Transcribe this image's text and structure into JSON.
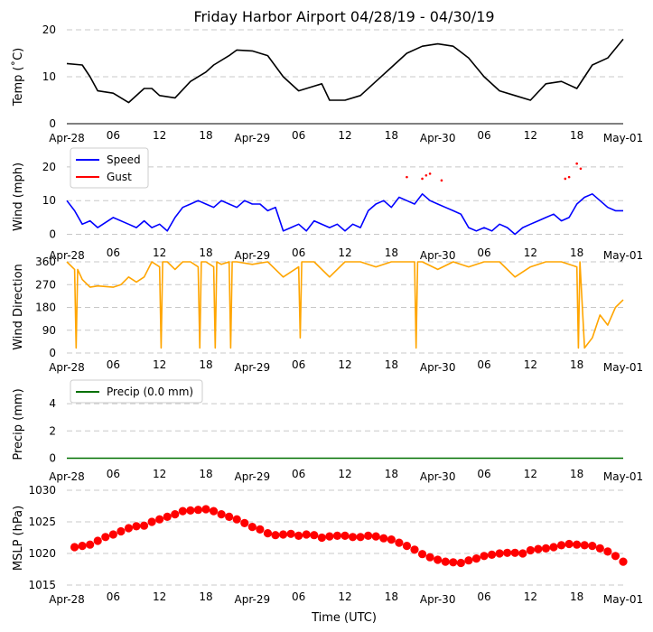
{
  "title": "Friday Harbor Airport 04/28/19 - 04/30/19",
  "xlabel": "Time (UTC)",
  "x_ticks": [
    "Apr-28",
    "06",
    "12",
    "18",
    "Apr-29",
    "06",
    "12",
    "18",
    "Apr-30",
    "06",
    "12",
    "18",
    "May-01"
  ],
  "colors": {
    "temp": "#000000",
    "speed": "#0000ff",
    "gust": "#ff0000",
    "dir": "#ffa500",
    "precip": "#007000",
    "mslp": "#ff0000",
    "grid": "#c8c8c8"
  },
  "chart_data": [
    {
      "type": "line",
      "name": "temperature",
      "ylabel": "Temp ($^\\circ$C)",
      "ylabel_display": "Temp (˚C)",
      "ylim": [
        0,
        20
      ],
      "yticks": [
        "0",
        "10",
        "20"
      ],
      "x_hours": [
        0,
        2,
        3,
        4,
        6,
        8,
        10,
        11,
        12,
        14,
        16,
        18,
        19,
        21,
        22,
        24,
        26,
        28,
        30,
        32,
        33,
        34,
        36,
        38,
        40,
        42,
        44,
        46,
        48,
        50,
        52,
        54,
        56,
        58,
        60,
        62,
        64,
        66,
        68,
        70,
        72
      ],
      "series": [
        {
          "name": "Temp",
          "values": [
            12.8,
            12.5,
            10,
            7,
            6.5,
            4.5,
            7.5,
            7.5,
            6,
            5.5,
            9,
            11,
            12.5,
            14.5,
            15.7,
            15.5,
            14.5,
            10,
            7,
            8,
            8.5,
            5,
            5,
            6,
            9,
            12,
            15,
            16.5,
            17,
            16.5,
            14,
            10,
            7,
            6,
            5,
            8.5,
            9,
            7.5,
            12.5,
            14,
            18
          ]
        }
      ]
    },
    {
      "type": "line",
      "name": "wind",
      "ylabel": "Wind (mph)",
      "ylim": [
        -2,
        24
      ],
      "yticks": [
        "0",
        "10",
        "20"
      ],
      "x_hours": [
        0,
        1,
        2,
        3,
        4,
        6,
        8,
        9,
        10,
        11,
        12,
        13,
        14,
        15,
        16,
        17,
        18,
        19,
        20,
        21,
        22,
        23,
        24,
        25,
        26,
        27,
        28,
        29,
        30,
        31,
        32,
        34,
        35,
        36,
        37,
        38,
        39,
        40,
        41,
        42,
        43,
        44,
        45,
        46,
        47,
        48,
        49,
        50,
        51,
        52,
        53,
        54,
        55,
        56,
        57,
        58,
        59,
        60,
        61,
        62,
        63,
        64,
        65,
        66,
        67,
        68,
        69,
        70,
        71,
        72
      ],
      "series": [
        {
          "name": "Speed",
          "values": [
            10,
            7,
            3,
            4,
            2,
            5,
            3,
            2,
            4,
            2,
            3,
            1,
            5,
            8,
            9,
            10,
            9,
            8,
            10,
            9,
            8,
            10,
            9,
            9,
            7,
            8,
            1,
            2,
            3,
            1,
            4,
            2,
            3,
            1,
            3,
            2,
            7,
            9,
            10,
            8,
            11,
            10,
            9,
            12,
            10,
            9,
            8,
            7,
            6,
            2,
            1,
            2,
            1,
            3,
            2,
            0,
            2,
            3,
            4,
            5,
            6,
            4,
            5,
            9,
            11,
            12,
            10,
            8,
            7,
            7
          ]
        },
        {
          "name": "Gust",
          "x_hours": [
            44,
            46,
            46.5,
            47,
            48.5,
            64.5,
            65,
            66,
            66.5
          ],
          "values": [
            17,
            16.5,
            17.5,
            18,
            16,
            16.5,
            17,
            21,
            19.5
          ]
        }
      ],
      "legend": [
        "Speed",
        "Gust"
      ]
    },
    {
      "type": "line",
      "name": "wind_direction",
      "ylabel": "Wind Direction",
      "ylim": [
        0,
        360
      ],
      "yticks": [
        "0",
        "90",
        "180",
        "270",
        "360"
      ],
      "x_hours": [
        0,
        1,
        1.2,
        1.4,
        2,
        3,
        4,
        6,
        7,
        8,
        9,
        10,
        11,
        12,
        12.2,
        12.4,
        13,
        14,
        15,
        16,
        17,
        17.2,
        17.4,
        18,
        19,
        19.2,
        19.4,
        20,
        21,
        21.2,
        21.4,
        22,
        24,
        26,
        28,
        30,
        30.2,
        30.4,
        32,
        34,
        36,
        38,
        40,
        42,
        44,
        45,
        45.2,
        45.4,
        46,
        48,
        50,
        52,
        54,
        56,
        58,
        60,
        62,
        64,
        66,
        66.2,
        66.4,
        67,
        68,
        69,
        70,
        71,
        72
      ],
      "series": [
        {
          "name": "Direction",
          "values": [
            360,
            330,
            20,
            330,
            290,
            260,
            265,
            260,
            270,
            300,
            280,
            300,
            360,
            340,
            20,
            360,
            360,
            330,
            360,
            360,
            340,
            20,
            360,
            360,
            340,
            20,
            360,
            350,
            360,
            20,
            360,
            360,
            350,
            360,
            300,
            340,
            60,
            360,
            360,
            300,
            360,
            360,
            340,
            360,
            360,
            360,
            20,
            360,
            360,
            330,
            360,
            340,
            360,
            360,
            300,
            340,
            360,
            360,
            340,
            20,
            360,
            20,
            60,
            150,
            110,
            180,
            210
          ]
        }
      ]
    },
    {
      "type": "line",
      "name": "precipitation",
      "ylabel": "Precip (mm)",
      "ylim": [
        -0.3,
        5
      ],
      "yticks": [
        "0",
        "2",
        "4"
      ],
      "x_hours": [
        0,
        72
      ],
      "series": [
        {
          "name": "Precip (0.0 mm)",
          "values": [
            0,
            0
          ]
        }
      ],
      "legend": [
        "Precip (0.0 mm)"
      ]
    },
    {
      "type": "scatter",
      "name": "mslp",
      "ylabel": "MSLP (hPa)",
      "ylim": [
        1015,
        1030
      ],
      "yticks": [
        "1015",
        "1020",
        "1025",
        "1030"
      ],
      "x_hours": [
        1,
        2,
        3,
        4,
        5,
        6,
        7,
        8,
        9,
        10,
        11,
        12,
        13,
        14,
        15,
        16,
        17,
        18,
        19,
        20,
        21,
        22,
        23,
        24,
        25,
        26,
        27,
        28,
        29,
        30,
        31,
        32,
        33,
        34,
        35,
        36,
        37,
        38,
        39,
        40,
        41,
        42,
        43,
        44,
        45,
        46,
        47,
        48,
        49,
        50,
        51,
        52,
        53,
        54,
        55,
        56,
        57,
        58,
        59,
        60,
        61,
        62,
        63,
        64,
        65,
        66,
        67,
        68,
        69,
        70,
        71,
        72
      ],
      "series": [
        {
          "name": "MSLP",
          "values": [
            1021.0,
            1021.2,
            1021.4,
            1022.0,
            1022.6,
            1023.0,
            1023.5,
            1024.0,
            1024.3,
            1024.4,
            1025.0,
            1025.4,
            1025.8,
            1026.2,
            1026.7,
            1026.8,
            1026.9,
            1027.0,
            1026.7,
            1026.2,
            1025.8,
            1025.4,
            1024.8,
            1024.2,
            1023.8,
            1023.2,
            1022.9,
            1023.0,
            1023.1,
            1022.8,
            1023.0,
            1022.9,
            1022.5,
            1022.7,
            1022.8,
            1022.8,
            1022.6,
            1022.6,
            1022.8,
            1022.7,
            1022.4,
            1022.2,
            1021.7,
            1021.2,
            1020.6,
            1019.9,
            1019.4,
            1019.0,
            1018.7,
            1018.6,
            1018.5,
            1018.9,
            1019.2,
            1019.6,
            1019.8,
            1020.0,
            1020.1,
            1020.1,
            1020.0,
            1020.5,
            1020.7,
            1020.8,
            1021.0,
            1021.3,
            1021.5,
            1021.4,
            1021.3,
            1021.2,
            1020.8,
            1020.3,
            1019.6,
            1018.7
          ]
        }
      ]
    }
  ]
}
